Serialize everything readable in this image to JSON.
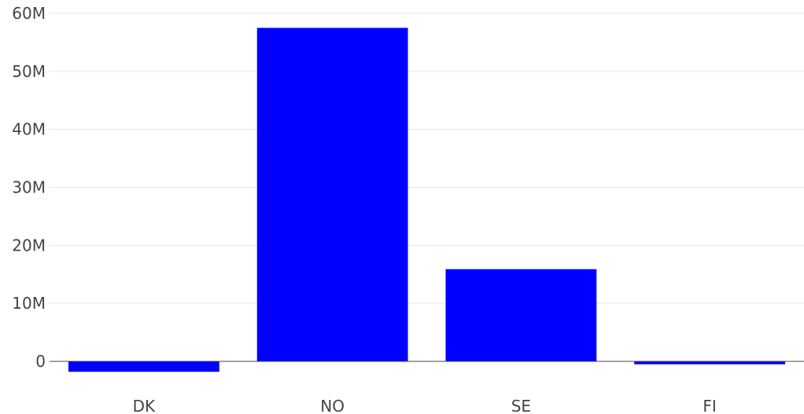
{
  "chart_data": {
    "type": "bar",
    "title": "",
    "xlabel": "",
    "ylabel": "",
    "categories": [
      "DK",
      "NO",
      "SE",
      "FI"
    ],
    "values": [
      -1800000,
      57500000,
      15900000,
      -500000
    ],
    "ylim": [
      -3000000,
      60000000
    ],
    "yticks": [
      0,
      10000000,
      20000000,
      30000000,
      40000000,
      50000000,
      60000000
    ],
    "ytick_labels": [
      "0",
      "10M",
      "20M",
      "30M",
      "40M",
      "50M",
      "60M"
    ],
    "grid": true,
    "legend": "none",
    "bar_color": "#0000ff"
  }
}
